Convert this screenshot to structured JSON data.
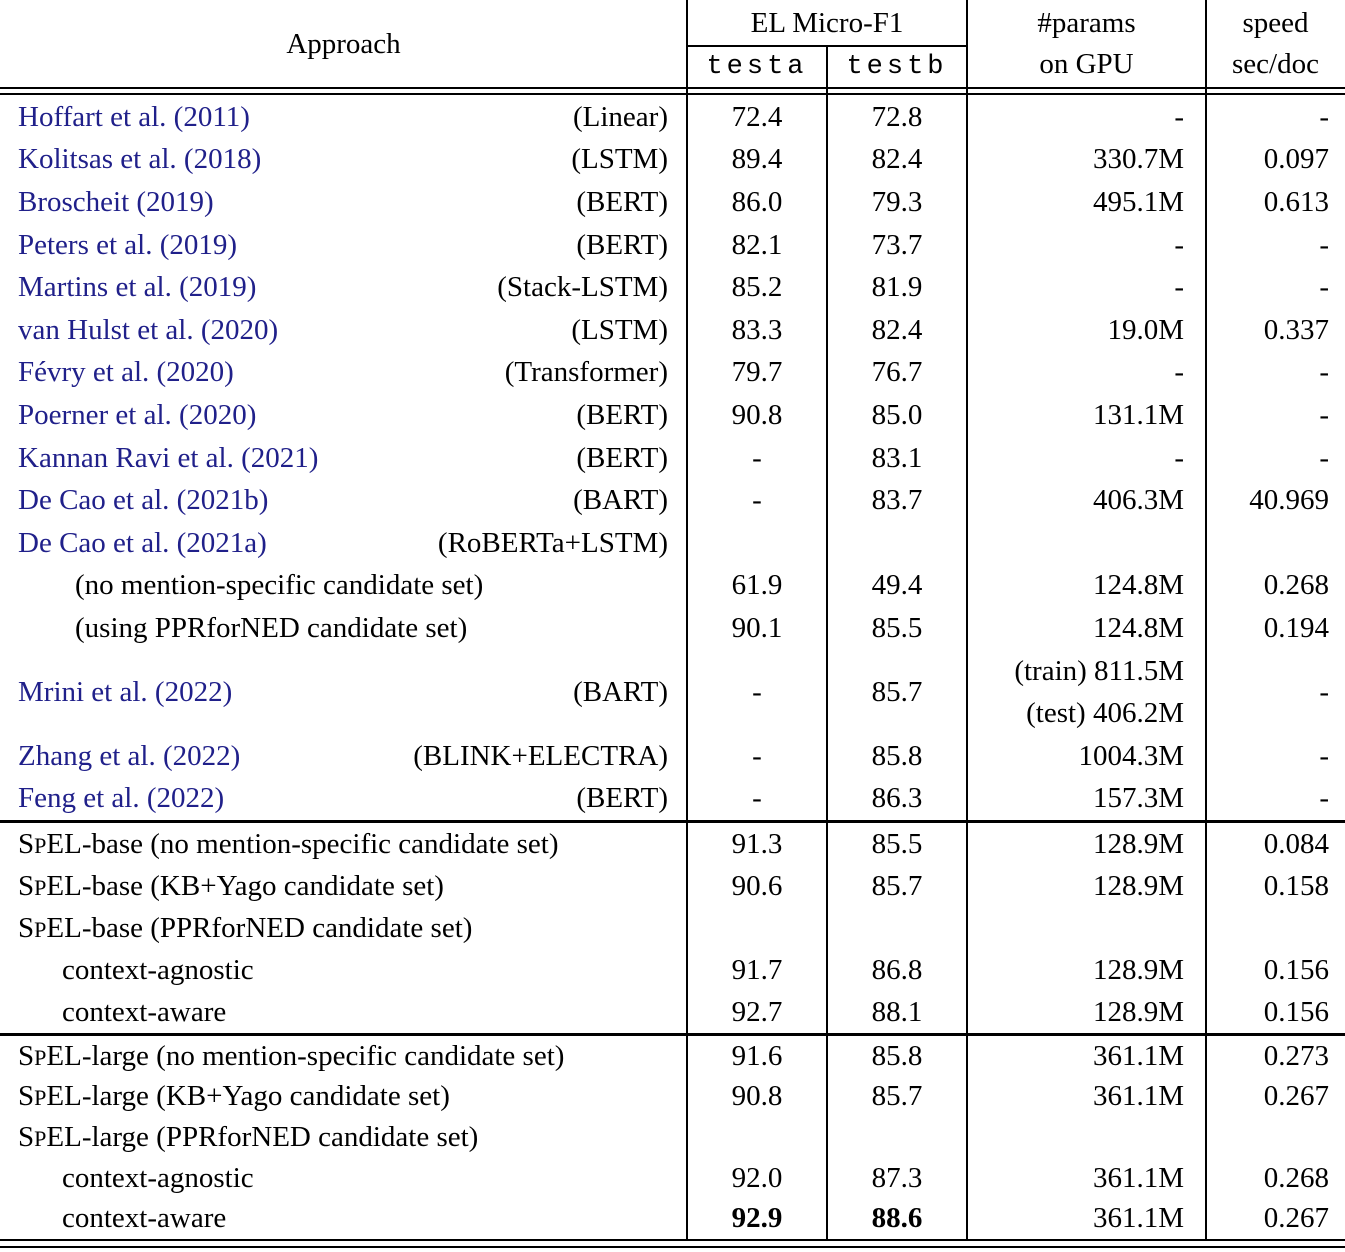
{
  "header": {
    "approach": "Approach",
    "group_f1": "EL Micro-F1",
    "col_testa": "testa",
    "col_testb": "testb",
    "col_params_l1": "#params",
    "col_params_l2": "on GPU",
    "col_speed_l1": "speed",
    "col_speed_l2": "sec/doc"
  },
  "colors": {
    "citation_blue": "#20208a",
    "text_black": "#000000",
    "background": "#ffffff"
  },
  "sections": [
    {
      "name": "prior-work",
      "rows": [
        {
          "citation": "Hoffart et al. (2011)",
          "method": "(Linear)",
          "testa": "72.4",
          "testb": "72.8",
          "params": "-",
          "speed": "-"
        },
        {
          "citation": "Kolitsas et al. (2018)",
          "method": "(LSTM)",
          "testa": "89.4",
          "testb": "82.4",
          "params": "330.7M",
          "speed": "0.097"
        },
        {
          "citation": "Broscheit (2019)",
          "method": "(BERT)",
          "testa": "86.0",
          "testb": "79.3",
          "params": "495.1M",
          "speed": "0.613"
        },
        {
          "citation": "Peters et al. (2019)",
          "method": "(BERT)",
          "testa": "82.1",
          "testb": "73.7",
          "params": "-",
          "speed": "-"
        },
        {
          "citation": "Martins et al. (2019)",
          "method": "(Stack-LSTM)",
          "testa": "85.2",
          "testb": "81.9",
          "params": "-",
          "speed": "-"
        },
        {
          "citation": "van Hulst et al. (2020)",
          "method": "(LSTM)",
          "testa": "83.3",
          "testb": "82.4",
          "params": "19.0M",
          "speed": "0.337"
        },
        {
          "citation": "Févry et al. (2020)",
          "method": "(Transformer)",
          "testa": "79.7",
          "testb": "76.7",
          "params": "-",
          "speed": "-"
        },
        {
          "citation": "Poerner et al. (2020)",
          "method": "(BERT)",
          "testa": "90.8",
          "testb": "85.0",
          "params": "131.1M",
          "speed": "-"
        },
        {
          "citation": "Kannan Ravi et al. (2021)",
          "method": "(BERT)",
          "testa": "-",
          "testb": "83.1",
          "params": "-",
          "speed": "-"
        },
        {
          "citation": "De Cao et al. (2021b)",
          "method": "(BART)",
          "testa": "-",
          "testb": "83.7",
          "params": "406.3M",
          "speed": "40.969"
        },
        {
          "citation": "De Cao et al. (2021a)",
          "method": "(RoBERTa+LSTM)",
          "testa": "",
          "testb": "",
          "params": "",
          "speed": ""
        },
        {
          "label": "(no mention-specific candidate set)",
          "indent": 1,
          "testa": "61.9",
          "testb": "49.4",
          "params": "124.8M",
          "speed": "0.268"
        },
        {
          "label": "(using PPRforNED candidate set)",
          "indent": 1,
          "testa": "90.1",
          "testb": "85.5",
          "params": "124.8M",
          "speed": "0.194"
        },
        {
          "citation": "Mrini et al. (2022)",
          "method": "(BART)",
          "testa": "-",
          "testb": "85.7",
          "params_lines": [
            "(train) 811.5M",
            "(test) 406.2M"
          ],
          "speed": "-",
          "tall": true
        },
        {
          "citation": "Zhang et al. (2022)",
          "method": "(BLINK+ELECTRA)",
          "testa": "-",
          "testb": "85.8",
          "params": "1004.3M",
          "speed": "-"
        },
        {
          "citation": "Feng et al. (2022)",
          "method": "(BERT)",
          "testa": "-",
          "testb": "86.3",
          "params": "157.3M",
          "speed": "-"
        }
      ]
    },
    {
      "name": "spel-base",
      "rows": [
        {
          "label": "SpEL-base (no mention-specific candidate set)",
          "spel": true,
          "testa": "91.3",
          "testb": "85.5",
          "params": "128.9M",
          "speed": "0.084"
        },
        {
          "label": "SpEL-base (KB+Yago candidate set)",
          "spel": true,
          "testa": "90.6",
          "testb": "85.7",
          "params": "128.9M",
          "speed": "0.158"
        },
        {
          "label": "SpEL-base (PPRforNED candidate set)",
          "spel": true,
          "testa": "",
          "testb": "",
          "params": "",
          "speed": ""
        },
        {
          "label": "context-agnostic",
          "indent": 2,
          "testa": "91.7",
          "testb": "86.8",
          "params": "128.9M",
          "speed": "0.156"
        },
        {
          "label": "context-aware",
          "indent": 2,
          "testa": "92.7",
          "testb": "88.1",
          "params": "128.9M",
          "speed": "0.156"
        }
      ]
    },
    {
      "name": "spel-large",
      "rows": [
        {
          "label": "SpEL-large (no mention-specific candidate set)",
          "spel": true,
          "testa": "91.6",
          "testb": "85.8",
          "params": "361.1M",
          "speed": "0.273"
        },
        {
          "label": "SpEL-large (KB+Yago candidate set)",
          "spel": true,
          "testa": "90.8",
          "testb": "85.7",
          "params": "361.1M",
          "speed": "0.267"
        },
        {
          "label": "SpEL-large (PPRforNED candidate set)",
          "spel": true,
          "testa": "",
          "testb": "",
          "params": "",
          "speed": ""
        },
        {
          "label": "context-agnostic",
          "indent": 2,
          "testa": "92.0",
          "testb": "87.3",
          "params": "361.1M",
          "speed": "0.268"
        },
        {
          "label": "context-aware",
          "indent": 2,
          "testa": "92.9",
          "testb": "88.6",
          "params": "361.1M",
          "speed": "0.267",
          "bold": true
        }
      ]
    }
  ]
}
